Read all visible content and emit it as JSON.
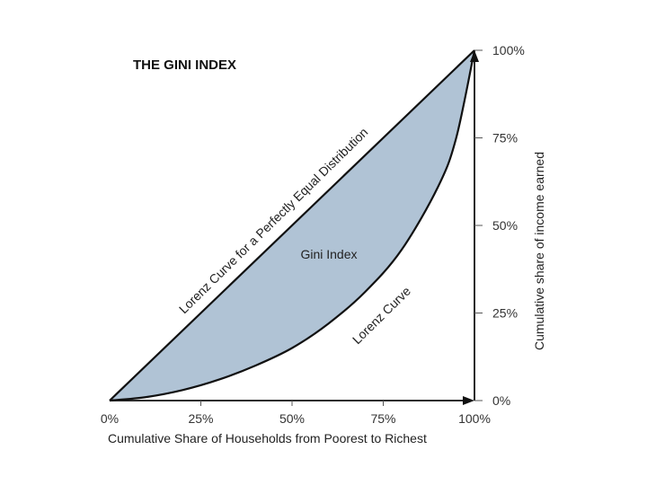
{
  "chart_data": {
    "type": "area",
    "title": "THE GINI INDEX",
    "xlabel": "Cumulative Share of Households from Poorest to Richest",
    "ylabel": "Cumulative share of income earned",
    "xlim": [
      0,
      100
    ],
    "ylim": [
      0,
      100
    ],
    "x_ticks": [
      "0%",
      "25%",
      "50%",
      "75%",
      "100%"
    ],
    "y_ticks": [
      "0%",
      "25%",
      "50%",
      "75%",
      "100%"
    ],
    "grid": false,
    "series": [
      {
        "name": "Lorenz Curve for a Perfectly Equal Distribution",
        "x": [
          0,
          100
        ],
        "y": [
          0,
          100
        ]
      },
      {
        "name": "Lorenz Curve",
        "x": [
          0,
          10,
          20,
          30,
          40,
          50,
          60,
          70,
          80,
          90,
          95,
          100
        ],
        "y": [
          0,
          1,
          3,
          6,
          10,
          15,
          22,
          31,
          43,
          61,
          75,
          100
        ]
      }
    ],
    "annotations": {
      "area_label": "Gini Index"
    },
    "colors": {
      "area_fill": "#b0c3d5",
      "line": "#111111"
    }
  }
}
